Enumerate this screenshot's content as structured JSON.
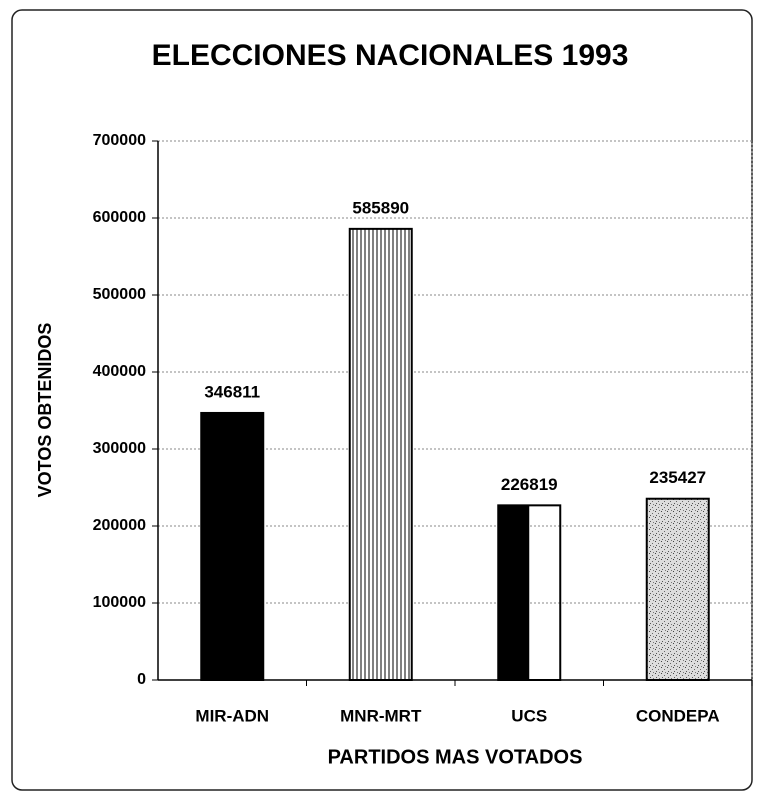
{
  "chart_data": {
    "type": "bar",
    "title": "ELECCIONES NACIONALES 1993",
    "categories": [
      "MIR-ADN",
      "MNR-MRT",
      "UCS",
      "CONDEPA"
    ],
    "values": [
      346811,
      585890,
      226819,
      235427
    ],
    "ylim": [
      0,
      700000
    ],
    "yticks": [
      0,
      100000,
      200000,
      300000,
      400000,
      500000,
      600000,
      700000
    ],
    "y_label": "VOTOS OBTENIDOS",
    "x_label": "PARTIDOS MAS VOTADOS",
    "grid": true,
    "color": "#000000"
  }
}
